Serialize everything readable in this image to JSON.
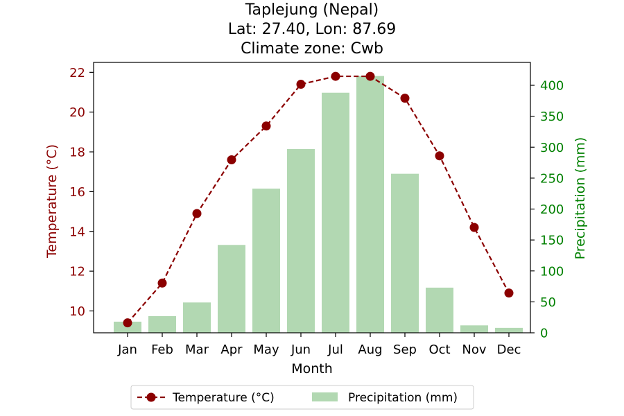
{
  "chart_data": {
    "type": "bar+line",
    "title_lines": [
      "Taplejung (Nepal)",
      "Lat: 27.40, Lon: 87.69",
      "Climate zone: Cwb"
    ],
    "xlabel": "Month",
    "categories": [
      "Jan",
      "Feb",
      "Mar",
      "Apr",
      "May",
      "Jun",
      "Jul",
      "Aug",
      "Sep",
      "Oct",
      "Nov",
      "Dec"
    ],
    "y_left": {
      "label": "Temperature (°C)",
      "lim": [
        8.9,
        22.5
      ],
      "ticks": [
        10,
        12,
        14,
        16,
        18,
        20,
        22
      ],
      "color": "#8b0000"
    },
    "y_right": {
      "label": "Precipitation (mm)",
      "lim": [
        0,
        437
      ],
      "ticks": [
        0,
        50,
        100,
        150,
        200,
        250,
        300,
        350,
        400
      ],
      "color": "#008000"
    },
    "series": [
      {
        "name": "Temperature (°C)",
        "kind": "line",
        "axis": "left",
        "style": "dashed",
        "marker": "circle",
        "color": "#8b0000",
        "values": [
          9.4,
          11.4,
          14.9,
          17.6,
          19.3,
          21.4,
          21.8,
          21.8,
          20.7,
          17.8,
          14.2,
          10.9
        ]
      },
      {
        "name": "Precipitation (mm)",
        "kind": "bar",
        "axis": "right",
        "color": "#b2d8b2",
        "values": [
          18,
          27,
          49,
          142,
          233,
          297,
          388,
          415,
          257,
          73,
          12,
          8
        ]
      }
    ],
    "legend_placement": "bottom-center",
    "grid": false
  }
}
